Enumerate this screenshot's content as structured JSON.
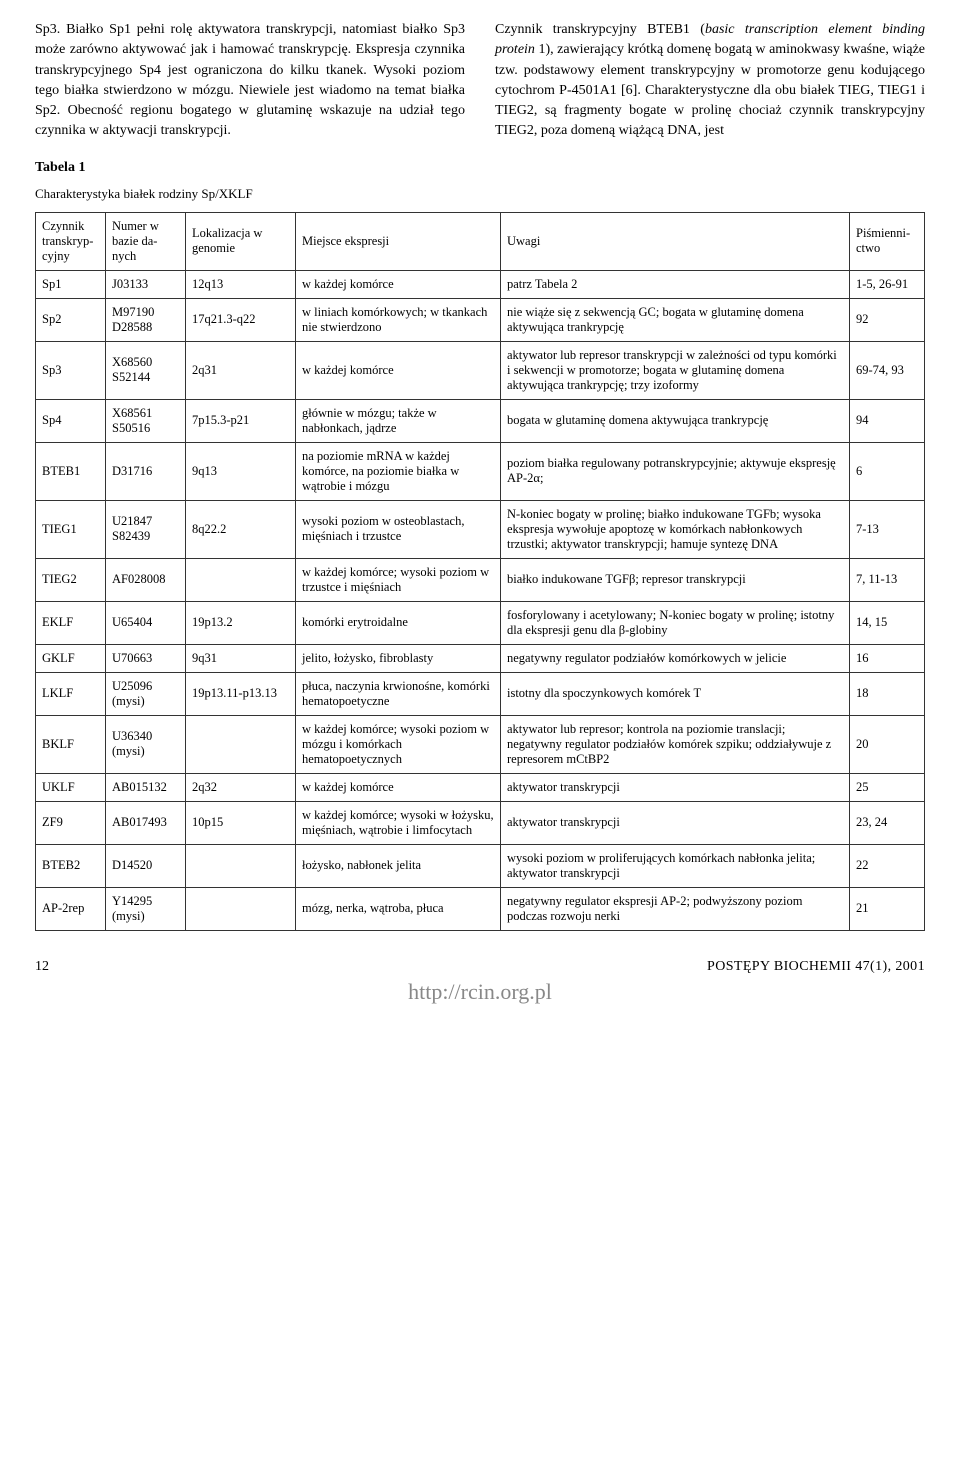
{
  "text": {
    "left_para": "Sp3. Białko Sp1 pełni rolę aktywatora transkrypcji, natomiast białko Sp3 może zarówno aktywować jak i hamować transkrypcję. Ekspresja czynnika transkrypcyjnego Sp4 jest ograniczona do kilku tkanek. Wysoki poziom tego białka stwierdzono w mózgu. Niewiele jest wiadomo na temat białka Sp2. Obecność regionu bogatego w glutaminę wskazuje na udział tego czynnika w aktywacji transkrypcji.",
    "right_para_pre": "Czynnik transkrypcyjny BTEB1 (",
    "right_para_italic": "basic transcription element binding protein",
    "right_para_post": " 1), zawierający krótką domenę bogatą w aminokwasy kwaśne, wiąże tzw. podstawowy element transkrypcyjny w promotorze genu kodującego cytochrom P-4501A1 [6]. Charakterystyczne dla obu białek TIEG, TIEG1 i TIEG2, są fragmenty bogate w prolinę chociaż czynnik transkrypcyjny TIEG2, poza domeną wiążącą DNA, jest",
    "table_label": "Tabela 1",
    "table_caption": "Charakterystyka białek rodziny Sp/XKLF"
  },
  "table": {
    "headers": [
      "Czynnik transkryp-cyjny",
      "Numer w bazie da-nych",
      "Lokalizacja w genomie",
      "Miejsce ekspresji",
      "Uwagi",
      "Piśmienni-ctwo"
    ],
    "rows": [
      [
        "Sp1",
        "J03133",
        "12q13",
        "w każdej komórce",
        "patrz Tabela 2",
        "1-5, 26-91"
      ],
      [
        "Sp2",
        "M97190 D28588",
        "17q21.3-q22",
        "w liniach komórkowych; w tkankach nie stwierdzono",
        "nie wiąże się z sekwencją GC; bogata w glutaminę domena aktywująca trankrypcję",
        "92"
      ],
      [
        "Sp3",
        "X68560 S52144",
        "2q31",
        "w każdej komórce",
        "aktywator lub represor transkrypcji w zależności od typu komórki i sekwencji w promotorze; bogata w glutaminę domena aktywująca trankrypcję; trzy izoformy",
        "69-74, 93"
      ],
      [
        "Sp4",
        "X68561 S50516",
        "7p15.3-p21",
        "głównie w mózgu; także w nabłonkach, jądrze",
        "bogata w glutaminę domena aktywująca trankrypcję",
        "94"
      ],
      [
        "BTEB1",
        "D31716",
        "9q13",
        "na poziomie mRNA w każdej komórce, na poziomie białka w wątrobie i mózgu",
        "poziom białka regulowany potranskrypcyjnie; aktywuje ekspresję AP-2α;",
        "6"
      ],
      [
        "TIEG1",
        "U21847 S82439",
        "8q22.2",
        "wysoki poziom w osteoblastach, mięśniach i trzustce",
        "N-koniec bogaty w prolinę; białko indukowane TGFb; wysoka ekspresja wywołuje apoptozę w komórkach nabłonkowych trzustki; aktywator transkrypcji; hamuje syntezę DNA",
        "7-13"
      ],
      [
        "TIEG2",
        "AF028008",
        "",
        "w każdej komórce; wysoki poziom w trzustce i mięśniach",
        "białko indukowane TGFβ; represor transkrypcji",
        "7, 11-13"
      ],
      [
        "EKLF",
        "U65404",
        "19p13.2",
        "komórki erytroidalne",
        "fosforylowany i acetylowany; N-koniec bogaty w prolinę; istotny dla ekspresji genu dla β-globiny",
        "14, 15"
      ],
      [
        "GKLF",
        "U70663",
        "9q31",
        "jelito, łożysko, fibroblasty",
        "negatywny regulator podziałów komórkowych w jelicie",
        "16"
      ],
      [
        "LKLF",
        "U25096 (mysi)",
        "19p13.11-p13.13",
        "płuca, naczynia krwionośne, komórki hematopoetyczne",
        "istotny dla spoczynkowych komórek T",
        "18"
      ],
      [
        "BKLF",
        "U36340 (mysi)",
        "",
        "w każdej komórce; wysoki poziom w mózgu i komórkach hematopoetycznych",
        "aktywator lub represor; kontrola na poziomie translacji; negatywny regulator podziałów komórek szpiku; oddziaływuje z represorem mCtBP2",
        "20"
      ],
      [
        "UKLF",
        "AB015132",
        "2q32",
        "w każdej komórce",
        "aktywator transkrypcji",
        "25"
      ],
      [
        "ZF9",
        "AB017493",
        "10p15",
        "w każdej komórce; wysoki w łożysku, mięśniach, wątrobie i limfocytach",
        "aktywator transkrypcji",
        "23, 24"
      ],
      [
        "BTEB2",
        "D14520",
        "",
        "łożysko, nabłonek jelita",
        "wysoki poziom w proliferujących komórkach nabłonka jelita; aktywator transkrypcji",
        "22"
      ],
      [
        "AP-2rep",
        "Y14295 (mysi)",
        "",
        "mózg, nerka, wątroba, płuca",
        "negatywny regulator ekspresji AP-2; podwyższony poziom podczas rozwoju nerki",
        "21"
      ]
    ]
  },
  "footer": {
    "page": "12",
    "journal": "POSTĘPY BIOCHEMII 47(1), 2001",
    "watermark": "http://rcin.org.pl"
  }
}
